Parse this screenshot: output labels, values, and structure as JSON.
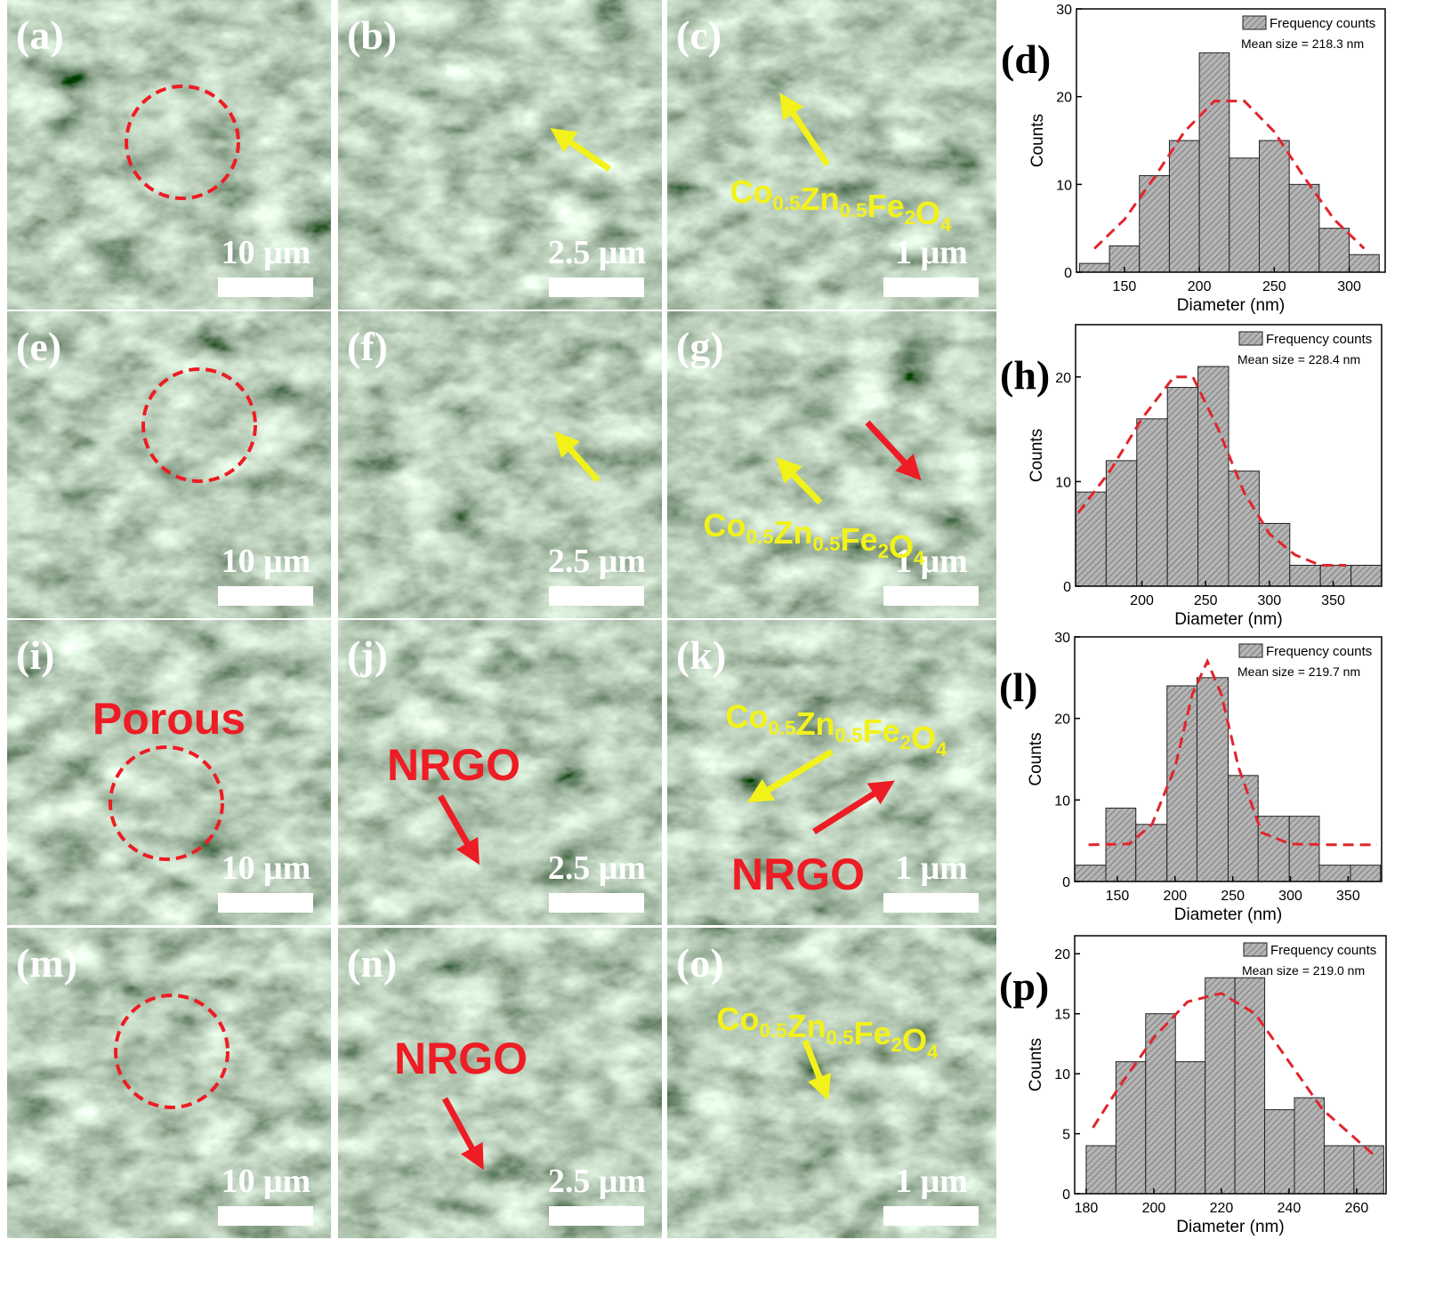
{
  "panels": [
    {
      "label": "(a)",
      "scale": "10 μm",
      "annotations": []
    },
    {
      "label": "(b)",
      "scale": "2.5 μm",
      "annotations": []
    },
    {
      "label": "(c)",
      "scale": "1 μm",
      "annotations": [
        {
          "text": "Co0.5Zn0.5Fe2O4",
          "color": "#f2f21a"
        }
      ]
    },
    {
      "label": "(e)",
      "scale": "10 μm",
      "annotations": []
    },
    {
      "label": "(f)",
      "scale": "2.5 μm",
      "annotations": []
    },
    {
      "label": "(g)",
      "scale": "1 μm",
      "annotations": [
        {
          "text": "Co0.5Zn0.5Fe2O4",
          "color": "#f2f21a"
        }
      ]
    },
    {
      "label": "(i)",
      "scale": "10 μm",
      "annotations": [
        {
          "text": "Porous",
          "color": "#ee1c24"
        }
      ]
    },
    {
      "label": "(j)",
      "scale": "2.5 μm",
      "annotations": [
        {
          "text": "NRGO",
          "color": "#ee1c24"
        }
      ]
    },
    {
      "label": "(k)",
      "scale": "1 μm",
      "annotations": [
        {
          "text": "Co0.5Zn0.5Fe2O4",
          "color": "#f2f21a"
        },
        {
          "text": "NRGO",
          "color": "#ee1c24"
        }
      ]
    },
    {
      "label": "(m)",
      "scale": "10 μm",
      "annotations": []
    },
    {
      "label": "(n)",
      "scale": "2.5 μm",
      "annotations": [
        {
          "text": "NRGO",
          "color": "#ee1c24"
        }
      ]
    },
    {
      "label": "(o)",
      "scale": "1 μm",
      "annotations": [
        {
          "text": "Co0.5Zn0.5Fe2O4",
          "color": "#f2f21a"
        }
      ]
    }
  ],
  "chart_data": [
    {
      "type": "histogram",
      "panel_label": "(d)",
      "xlabel": "Diameter (nm)",
      "ylabel": "Counts",
      "annotation": "Mean size = 218.3 nm",
      "bins": [
        120,
        140,
        160,
        180,
        200,
        220,
        240,
        260,
        280,
        300,
        320
      ],
      "series": [
        {
          "name": "Frequency counts",
          "color": "#b4b4b4",
          "values": [
            1,
            3,
            11,
            15,
            25,
            13,
            15,
            10,
            5,
            2
          ]
        }
      ],
      "fit": {
        "color": "#e0252b",
        "x": [
          130,
          150,
          170,
          190,
          210,
          230,
          250,
          270,
          290,
          310
        ],
        "values": [
          2.7,
          6,
          10.8,
          16,
          19.5,
          19.5,
          16,
          10.8,
          6,
          2.7
        ]
      },
      "xlim": [
        118,
        324
      ],
      "xticks": [
        150,
        200,
        250,
        300
      ],
      "ylim": [
        0,
        30
      ],
      "yticks": [
        0,
        10,
        20,
        30
      ]
    },
    {
      "type": "histogram",
      "panel_label": "(h)",
      "xlabel": "Diameter (nm)",
      "ylabel": "Counts",
      "annotation": "Mean size = 228.4 nm",
      "bins": [
        148,
        172,
        196,
        220,
        244,
        268,
        292,
        316,
        340,
        364,
        388
      ],
      "series": [
        {
          "name": "Frequency counts",
          "color": "#b4b4b4",
          "values": [
            9,
            12,
            16,
            19,
            21,
            11,
            6,
            2,
            2,
            2
          ]
        }
      ],
      "fit": {
        "color": "#e0252b",
        "x": [
          150,
          175,
          200,
          225,
          240,
          260,
          280,
          300,
          320,
          340,
          360
        ],
        "values": [
          7,
          11,
          16,
          20,
          20,
          15,
          9,
          5,
          3,
          2,
          2
        ]
      },
      "xlim": [
        148,
        388
      ],
      "xticks": [
        200,
        250,
        300,
        350
      ],
      "ylim": [
        0,
        25
      ],
      "yticks": [
        0,
        10,
        20
      ]
    },
    {
      "type": "histogram",
      "panel_label": "(l)",
      "xlabel": "Diameter (nm)",
      "ylabel": "Counts",
      "annotation": "Mean size = 219.7 nm",
      "bins": [
        113,
        140,
        166,
        193,
        219,
        246,
        272,
        299,
        325,
        352,
        378
      ],
      "series": [
        {
          "name": "Frequency counts",
          "color": "#b4b4b4",
          "values": [
            2,
            9,
            7,
            24,
            25,
            13,
            8,
            8,
            2,
            2
          ]
        }
      ],
      "fit": {
        "color": "#e0252b",
        "x": [
          125,
          160,
          180,
          200,
          215,
          228,
          240,
          255,
          275,
          300,
          340,
          375
        ],
        "values": [
          4.5,
          4.6,
          7,
          14,
          23,
          27,
          23,
          14,
          6,
          4.6,
          4.5,
          4.5
        ]
      },
      "xlim": [
        113,
        379
      ],
      "xticks": [
        150,
        200,
        250,
        300,
        350
      ],
      "ylim": [
        0,
        30
      ],
      "yticks": [
        0,
        10,
        20,
        30
      ]
    },
    {
      "type": "histogram",
      "panel_label": "(p)",
      "xlabel": "Diameter (nm)",
      "ylabel": "Counts",
      "annotation": "Mean size = 219.0 nm",
      "bins": [
        180,
        188.8,
        197.6,
        206.4,
        215.2,
        224,
        232.8,
        241.6,
        250.4,
        259.2,
        268
      ],
      "series": [
        {
          "name": "Frequency counts",
          "color": "#b4b4b4",
          "values": [
            4,
            11,
            15,
            11,
            18,
            18,
            7,
            8,
            4,
            4
          ]
        }
      ],
      "fit": {
        "color": "#e0252b",
        "x": [
          182,
          190,
          200,
          210,
          220,
          230,
          240,
          250,
          260,
          266
        ],
        "values": [
          5.5,
          9,
          13,
          16,
          16.7,
          15,
          11,
          7,
          4.5,
          3
        ]
      },
      "xlim": [
        176.6,
        268.7
      ],
      "xticks": [
        180,
        200,
        220,
        240,
        260
      ],
      "ylim": [
        0,
        21.5
      ],
      "yticks": [
        0,
        5,
        10,
        15,
        20
      ]
    }
  ]
}
